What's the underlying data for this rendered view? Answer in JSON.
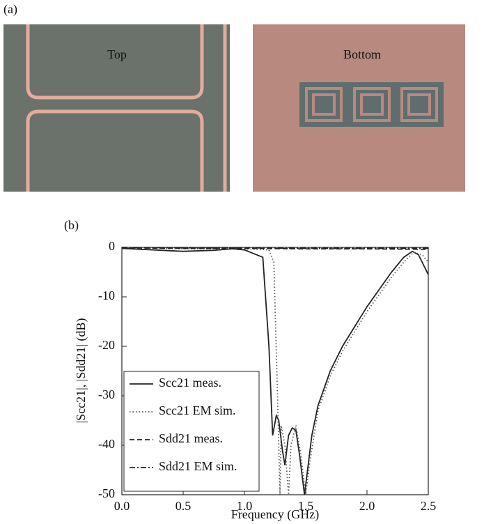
{
  "figure": {
    "panel_a": {
      "label": "(a)",
      "left_caption": "Top",
      "right_caption": "Bottom"
    },
    "panel_b_label": "(b)"
  },
  "chart_data": {
    "type": "line",
    "x_label": "Frequency (GHz)",
    "y_label": "|Scc21|, |Sdd21| (dB)",
    "xlim": [
      0,
      2.5
    ],
    "ylim": [
      -50,
      0
    ],
    "xticks": [
      {
        "value": 0,
        "label": "0.0"
      },
      0.5,
      {
        "value": 1,
        "label": "1.0"
      },
      1.5,
      {
        "value": 2,
        "label": "2.0"
      },
      2.5
    ],
    "yticks": [
      0,
      -10,
      -20,
      -30,
      -40,
      -50
    ],
    "legend": "lower left",
    "series": [
      {
        "name": "Scc21 meas.",
        "color": "#222222",
        "style": "solid",
        "x": [
          0,
          0.25,
          0.5,
          0.75,
          0.9,
          1.0,
          1.1,
          1.15,
          1.2,
          1.23,
          1.26,
          1.28,
          1.31,
          1.33,
          1.36,
          1.39,
          1.42,
          1.45,
          1.49,
          1.52,
          1.55,
          1.6,
          1.7,
          1.8,
          1.9,
          2.0,
          2.1,
          2.2,
          2.3,
          2.37,
          2.42,
          2.5
        ],
        "values": [
          -0.2,
          -0.5,
          -0.8,
          -0.6,
          -0.3,
          -0.5,
          -1.5,
          -2,
          -20,
          -38,
          -34,
          -35,
          -41,
          -44,
          -38,
          -36.5,
          -37,
          -42,
          -50,
          -44,
          -38,
          -32,
          -25,
          -20,
          -16,
          -12,
          -8.5,
          -5,
          -2,
          -0.8,
          -1.5,
          -5.5
        ]
      },
      {
        "name": "Scc21 EM sim.",
        "color": "#555555",
        "style": "dotted",
        "x": [
          0,
          0.5,
          1.0,
          1.2,
          1.24,
          1.27,
          1.29,
          1.3,
          1.33,
          1.36,
          1.38,
          1.42,
          1.46,
          1.5,
          1.53,
          1.6,
          1.7,
          1.8,
          1.9,
          2.0,
          2.1,
          2.2,
          2.3,
          2.38,
          2.45,
          2.5
        ],
        "values": [
          0,
          -0.3,
          -0.3,
          -0.5,
          -3,
          -30,
          -50,
          -36,
          -40,
          -50,
          -40,
          -36,
          -42,
          -50,
          -44,
          -33,
          -26,
          -21,
          -17,
          -13,
          -9.5,
          -6,
          -3,
          -1,
          -1.5,
          -3
        ]
      },
      {
        "name": "Sdd21 meas.",
        "color": "#222222",
        "style": "dashed",
        "x": [
          0,
          0.5,
          1.0,
          1.5,
          2.0,
          2.5
        ],
        "values": [
          -0.1,
          -0.2,
          -0.2,
          -0.3,
          -0.3,
          -0.4
        ]
      },
      {
        "name": "Sdd21 EM sim.",
        "color": "#222222",
        "style": "dashdot",
        "x": [
          0,
          0.5,
          1.0,
          1.5,
          2.0,
          2.5
        ],
        "values": [
          0,
          -0.1,
          -0.1,
          -0.2,
          -0.2,
          -0.2
        ]
      }
    ]
  }
}
